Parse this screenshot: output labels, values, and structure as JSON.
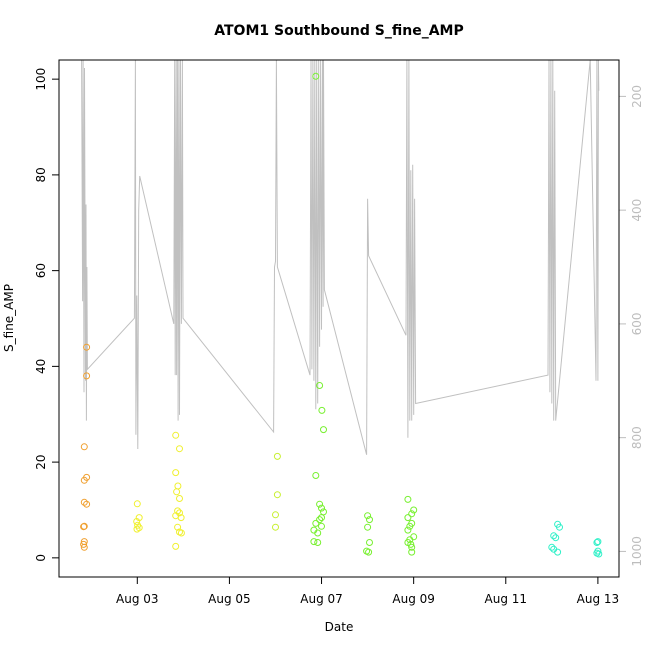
{
  "chart_data": {
    "type": "scatter",
    "title": "ATOM1 Southbound S_fine_AMP",
    "xlabel": "Date",
    "ylabel": "S_fine_AMP",
    "x_ticks": [
      {
        "date": "2023-08-03",
        "label": "Aug 03"
      },
      {
        "date": "2023-08-05",
        "label": "Aug 05"
      },
      {
        "date": "2023-08-07",
        "label": "Aug 07"
      },
      {
        "date": "2023-08-09",
        "label": "Aug 09"
      },
      {
        "date": "2023-08-11",
        "label": "Aug 11"
      },
      {
        "date": "2023-08-13",
        "label": "Aug 13"
      }
    ],
    "xlim": [
      "2023-08-01T07:12",
      "2023-08-13T11:00"
    ],
    "y_ticks": [
      0,
      20,
      40,
      60,
      80,
      100
    ],
    "ylim": [
      -4,
      104
    ],
    "y2_ticks": [
      200,
      400,
      600,
      800,
      1000
    ],
    "y2lim": [
      1045,
      136
    ],
    "y2_color": "#bdbdbd",
    "grid": false,
    "colors": {
      "orange": "#f0a030",
      "yellow": "#f0f030",
      "yellowgreen": "#c8f030",
      "green": "#78f030",
      "teal": "#30f0c8",
      "line": "#c0c0c0"
    },
    "series": [
      {
        "color": "#f0a030",
        "points": [
          [
            "2023-08-01T21:36",
            44
          ],
          [
            "2023-08-01T21:36",
            38
          ],
          [
            "2023-08-01T20:24",
            23.2
          ],
          [
            "2023-08-01T21:36",
            16.8
          ],
          [
            "2023-08-01T20:24",
            16.2
          ],
          [
            "2023-08-01T20:24",
            11.6
          ],
          [
            "2023-08-01T21:36",
            11.2
          ],
          [
            "2023-08-01T20:24",
            6.6
          ],
          [
            "2023-08-01T20:00",
            6.5
          ],
          [
            "2023-08-01T20:24",
            3.4
          ],
          [
            "2023-08-01T20:00",
            2.8
          ],
          [
            "2023-08-01T20:24",
            2.2
          ]
        ]
      },
      {
        "color": "#f0f030",
        "points": [
          [
            "2023-08-03T00:00",
            11.3
          ],
          [
            "2023-08-03T01:00",
            8.4
          ],
          [
            "2023-08-02T23:40",
            7.6
          ],
          [
            "2023-08-03T00:10",
            6.8
          ],
          [
            "2023-08-03T01:00",
            6.3
          ],
          [
            "2023-08-02T23:50",
            6.0
          ],
          [
            "2023-08-03T20:00",
            25.6
          ],
          [
            "2023-08-03T22:00",
            22.8
          ],
          [
            "2023-08-03T20:00",
            17.8
          ],
          [
            "2023-08-03T21:10",
            15.0
          ],
          [
            "2023-08-03T20:30",
            13.8
          ],
          [
            "2023-08-03T22:00",
            12.4
          ],
          [
            "2023-08-03T21:00",
            9.8
          ],
          [
            "2023-08-03T22:00",
            9.4
          ],
          [
            "2023-08-03T20:00",
            8.8
          ],
          [
            "2023-08-03T22:50",
            8.4
          ],
          [
            "2023-08-03T21:00",
            6.4
          ],
          [
            "2023-08-03T22:00",
            5.4
          ],
          [
            "2023-08-03T23:00",
            5.2
          ],
          [
            "2023-08-03T20:00",
            2.4
          ]
        ]
      },
      {
        "color": "#c8f030",
        "points": [
          [
            "2023-08-06T01:00",
            21.2
          ],
          [
            "2023-08-06T01:00",
            13.2
          ],
          [
            "2023-08-06T00:00",
            9.0
          ],
          [
            "2023-08-06T00:00",
            6.4
          ]
        ]
      },
      {
        "color": "#78f030",
        "points": [
          [
            "2023-08-06T21:00",
            100.6
          ],
          [
            "2023-08-06T23:00",
            36.0
          ],
          [
            "2023-08-07T00:10",
            30.8
          ],
          [
            "2023-08-07T01:00",
            26.8
          ],
          [
            "2023-08-06T21:00",
            17.2
          ],
          [
            "2023-08-06T23:00",
            11.2
          ],
          [
            "2023-08-07T00:00",
            10.4
          ],
          [
            "2023-08-07T01:00",
            9.6
          ],
          [
            "2023-08-07T00:00",
            8.4
          ],
          [
            "2023-08-06T23:00",
            8.0
          ],
          [
            "2023-08-06T21:00",
            7.2
          ],
          [
            "2023-08-07T00:00",
            6.6
          ],
          [
            "2023-08-06T20:00",
            5.8
          ],
          [
            "2023-08-06T22:00",
            5.2
          ],
          [
            "2023-08-06T20:00",
            3.4
          ],
          [
            "2023-08-06T22:00",
            3.2
          ],
          [
            "2023-08-08T00:00",
            8.8
          ],
          [
            "2023-08-08T01:00",
            8.0
          ],
          [
            "2023-08-08T00:00",
            6.4
          ],
          [
            "2023-08-08T01:00",
            3.2
          ],
          [
            "2023-08-07T23:30",
            1.4
          ],
          [
            "2023-08-08T00:30",
            1.2
          ],
          [
            "2023-08-08T21:00",
            12.2
          ],
          [
            "2023-08-09T00:00",
            10.0
          ],
          [
            "2023-08-08T23:00",
            9.2
          ],
          [
            "2023-08-08T21:00",
            8.4
          ],
          [
            "2023-08-08T23:00",
            7.2
          ],
          [
            "2023-08-08T22:00",
            6.6
          ],
          [
            "2023-08-08T21:00",
            5.8
          ],
          [
            "2023-08-09T00:00",
            4.4
          ],
          [
            "2023-08-08T22:00",
            3.8
          ],
          [
            "2023-08-08T21:00",
            3.2
          ],
          [
            "2023-08-08T22:30",
            2.8
          ],
          [
            "2023-08-08T23:00",
            2.2
          ],
          [
            "2023-08-08T23:00",
            1.2
          ]
        ]
      },
      {
        "color": "#30f0c8",
        "points": [
          [
            "2023-08-12T03:00",
            7.0
          ],
          [
            "2023-08-12T04:00",
            6.4
          ],
          [
            "2023-08-12T01:00",
            4.6
          ],
          [
            "2023-08-12T02:00",
            4.2
          ],
          [
            "2023-08-12T00:00",
            2.2
          ],
          [
            "2023-08-12T01:00",
            1.8
          ],
          [
            "2023-08-12T03:00",
            1.2
          ],
          [
            "2023-08-13T00:00",
            3.4
          ],
          [
            "2023-08-12T23:30",
            3.2
          ],
          [
            "2023-08-13T00:00",
            1.4
          ],
          [
            "2023-08-12T23:30",
            1.0
          ],
          [
            "2023-08-13T00:30",
            0.8
          ]
        ]
      }
    ],
    "line_series": {
      "color": "#c0c0c0",
      "axis": "right",
      "points": [
        [
          "2023-08-01T19:00",
          136
        ],
        [
          "2023-08-01T19:30",
          560
        ],
        [
          "2023-08-01T19:45",
          136
        ],
        [
          "2023-08-01T20:15",
          720
        ],
        [
          "2023-08-01T20:30",
          150
        ],
        [
          "2023-08-01T21:00",
          700
        ],
        [
          "2023-08-01T21:15",
          390
        ],
        [
          "2023-08-01T21:30",
          770
        ],
        [
          "2023-08-01T21:45",
          500
        ],
        [
          "2023-08-01T22:00",
          680
        ],
        [
          "2023-08-02T22:30",
          590
        ],
        [
          "2023-08-02T23:00",
          136
        ],
        [
          "2023-08-02T23:15",
          795
        ],
        [
          "2023-08-02T23:45",
          550
        ],
        [
          "2023-08-03T00:15",
          820
        ],
        [
          "2023-08-03T00:45",
          400
        ],
        [
          "2023-08-03T01:15",
          340
        ],
        [
          "2023-08-03T19:00",
          600
        ],
        [
          "2023-08-03T19:30",
          136
        ],
        [
          "2023-08-03T19:45",
          690
        ],
        [
          "2023-08-03T20:15",
          136
        ],
        [
          "2023-08-03T20:30",
          690
        ],
        [
          "2023-08-03T21:00",
          136
        ],
        [
          "2023-08-03T21:15",
          770
        ],
        [
          "2023-08-03T21:45",
          136
        ],
        [
          "2023-08-03T22:00",
          760
        ],
        [
          "2023-08-03T22:30",
          136
        ],
        [
          "2023-08-03T23:00",
          600
        ],
        [
          "2023-08-03T23:30",
          136
        ],
        [
          "2023-08-03T23:50",
          590
        ],
        [
          "2023-08-05T23:00",
          790
        ],
        [
          "2023-08-05T23:30",
          500
        ],
        [
          "2023-08-06T00:00",
          490
        ],
        [
          "2023-08-06T00:30",
          136
        ],
        [
          "2023-08-06T01:00",
          500
        ],
        [
          "2023-08-06T18:00",
          690
        ],
        [
          "2023-08-06T18:30",
          136
        ],
        [
          "2023-08-06T19:00",
          680
        ],
        [
          "2023-08-06T19:30",
          136
        ],
        [
          "2023-08-06T20:00",
          700
        ],
        [
          "2023-08-06T20:30",
          136
        ],
        [
          "2023-08-06T21:00",
          750
        ],
        [
          "2023-08-06T21:30",
          136
        ],
        [
          "2023-08-06T22:00",
          740
        ],
        [
          "2023-08-06T22:30",
          136
        ],
        [
          "2023-08-06T23:00",
          640
        ],
        [
          "2023-08-06T23:30",
          136
        ],
        [
          "2023-08-07T00:00",
          610
        ],
        [
          "2023-08-07T00:30",
          136
        ],
        [
          "2023-08-07T00:50",
          570
        ],
        [
          "2023-08-07T01:00",
          136
        ],
        [
          "2023-08-07T01:30",
          540
        ],
        [
          "2023-08-07T23:30",
          830
        ],
        [
          "2023-08-08T00:00",
          380
        ],
        [
          "2023-08-08T00:30",
          480
        ],
        [
          "2023-08-08T20:00",
          620
        ],
        [
          "2023-08-08T20:30",
          136
        ],
        [
          "2023-08-08T21:00",
          800
        ],
        [
          "2023-08-08T21:30",
          136
        ],
        [
          "2023-08-08T22:00",
          770
        ],
        [
          "2023-08-08T22:30",
          330
        ],
        [
          "2023-08-08T23:00",
          770
        ],
        [
          "2023-08-08T23:30",
          320
        ],
        [
          "2023-08-09T00:00",
          760
        ],
        [
          "2023-08-09T00:30",
          380
        ],
        [
          "2023-08-09T01:00",
          740
        ],
        [
          "2023-08-11T22:00",
          690
        ],
        [
          "2023-08-11T22:30",
          136
        ],
        [
          "2023-08-11T23:00",
          720
        ],
        [
          "2023-08-11T23:30",
          136
        ],
        [
          "2023-08-12T00:00",
          740
        ],
        [
          "2023-08-12T00:30",
          136
        ],
        [
          "2023-08-12T01:00",
          770
        ],
        [
          "2023-08-12T01:30",
          190
        ],
        [
          "2023-08-12T02:00",
          770
        ],
        [
          "2023-08-12T20:00",
          136
        ],
        [
          "2023-08-12T23:00",
          700
        ],
        [
          "2023-08-12T23:30",
          136
        ],
        [
          "2023-08-13T00:00",
          700
        ],
        [
          "2023-08-13T00:15",
          136
        ],
        [
          "2023-08-13T00:30",
          190
        ]
      ]
    }
  }
}
